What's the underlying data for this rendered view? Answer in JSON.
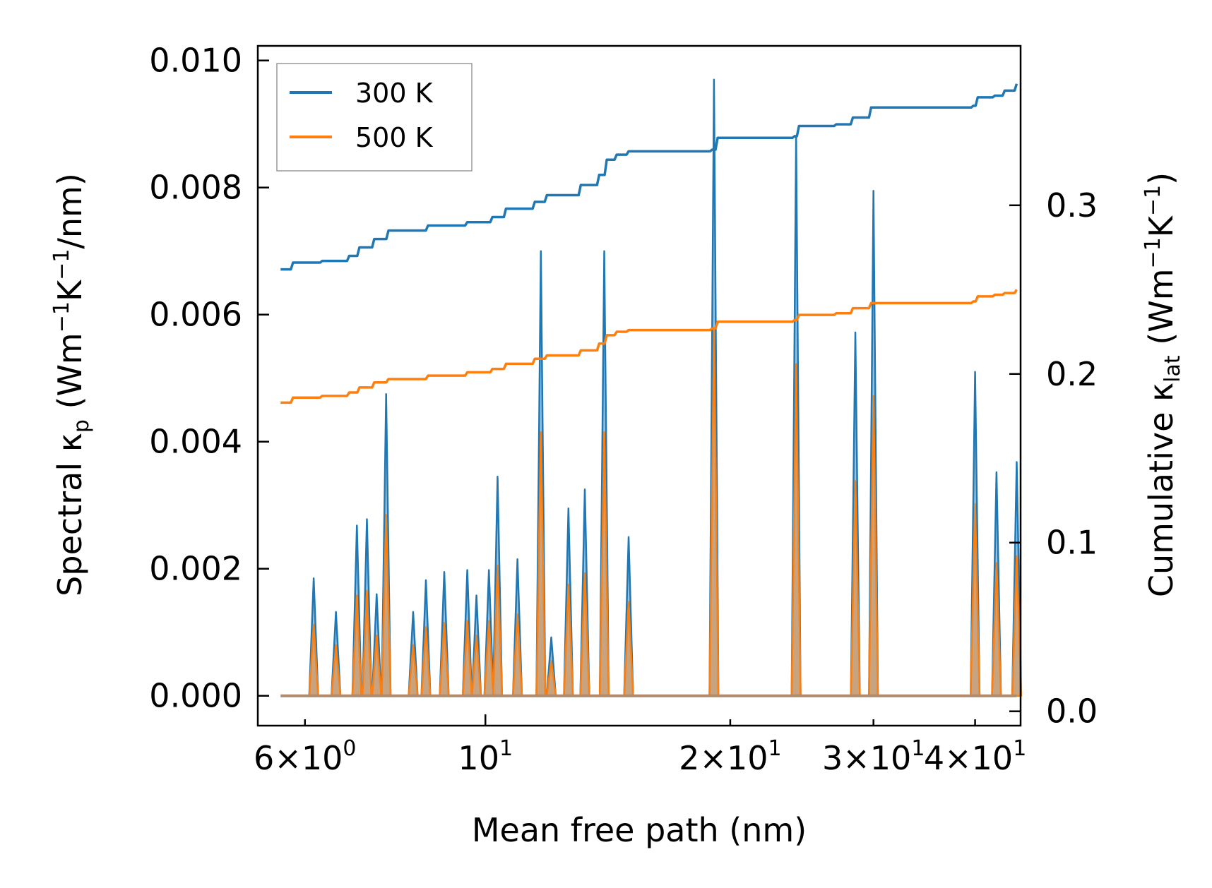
{
  "chart_data": {
    "type": "line",
    "title": "",
    "xlabel": "Mean free path (nm)",
    "ylabel_left": "Spectral κₚ (Wm⁻¹K⁻¹/nm)",
    "ylabel_left_parts": {
      "pre": "Spectral κ",
      "sub": "p",
      "post": " (Wm",
      "sup1": "−1",
      "mid": "K",
      "sup2": "−1",
      "end": "/nm)"
    },
    "ylabel_right": "Cumulative κ_lat (Wm⁻¹K⁻¹)",
    "ylabel_right_parts": {
      "pre": "Cumulative κ",
      "sub": "lat",
      "post": " (Wm",
      "sup1": "−1",
      "mid": "K",
      "sup2": "−1",
      "end": ")"
    },
    "x_scale": "log",
    "xlim": [
      5.25,
      45.5
    ],
    "ylim_left": [
      -0.00047,
      0.01023
    ],
    "ylim_right": [
      -0.0085,
      0.3945
    ],
    "x_ticks": [
      {
        "value": 6,
        "mant": "6",
        "base": "10",
        "exp": "0"
      },
      {
        "value": 10,
        "mant": "",
        "base": "10",
        "exp": "1"
      },
      {
        "value": 20,
        "mant": "2",
        "base": "10",
        "exp": "1"
      },
      {
        "value": 30,
        "mant": "3",
        "base": "10",
        "exp": "1"
      },
      {
        "value": 40,
        "mant": "4",
        "base": "10",
        "exp": "1"
      }
    ],
    "y_left_ticks": [
      "0.000",
      "0.002",
      "0.004",
      "0.006",
      "0.008",
      "0.010"
    ],
    "y_right_ticks": [
      "0.0",
      "0.1",
      "0.2",
      "0.3"
    ],
    "legend": {
      "position": "top-left",
      "entries": [
        {
          "label": "300 K",
          "color": "#1f77b4"
        },
        {
          "label": "500 K",
          "color": "#ff7f0e"
        }
      ]
    },
    "spectral_peaks": [
      {
        "x": 6.15,
        "y300": 0.00185,
        "y500": 0.00112
      },
      {
        "x": 6.55,
        "y300": 0.00132,
        "y500": 0.0008
      },
      {
        "x": 6.95,
        "y300": 0.00268,
        "y500": 0.00158
      },
      {
        "x": 7.15,
        "y300": 0.00278,
        "y500": 0.00165
      },
      {
        "x": 7.35,
        "y300": 0.0016,
        "y500": 0.00095
      },
      {
        "x": 7.55,
        "y300": 0.00475,
        "y500": 0.00285
      },
      {
        "x": 8.15,
        "y300": 0.00132,
        "y500": 0.0008
      },
      {
        "x": 8.45,
        "y300": 0.00182,
        "y500": 0.00108
      },
      {
        "x": 8.9,
        "y300": 0.00195,
        "y500": 0.00115
      },
      {
        "x": 9.5,
        "y300": 0.00198,
        "y500": 0.00118
      },
      {
        "x": 9.75,
        "y300": 0.00158,
        "y500": 0.00095
      },
      {
        "x": 10.1,
        "y300": 0.00198,
        "y500": 0.00118
      },
      {
        "x": 10.35,
        "y300": 0.00345,
        "y500": 0.00205
      },
      {
        "x": 10.95,
        "y300": 0.00215,
        "y500": 0.00128
      },
      {
        "x": 11.7,
        "y300": 0.007,
        "y500": 0.00415
      },
      {
        "x": 12.05,
        "y300": 0.00092,
        "y500": 0.00055
      },
      {
        "x": 12.65,
        "y300": 0.00295,
        "y500": 0.00175
      },
      {
        "x": 13.25,
        "y300": 0.00325,
        "y500": 0.00193
      },
      {
        "x": 14.0,
        "y300": 0.007,
        "y500": 0.00415
      },
      {
        "x": 15.0,
        "y300": 0.0025,
        "y500": 0.00148
      },
      {
        "x": 19.1,
        "y300": 0.0097,
        "y500": 0.00575
      },
      {
        "x": 24.1,
        "y300": 0.0088,
        "y500": 0.00522
      },
      {
        "x": 28.5,
        "y300": 0.00572,
        "y500": 0.00338
      },
      {
        "x": 30.0,
        "y300": 0.00795,
        "y500": 0.00472
      },
      {
        "x": 40.0,
        "y300": 0.0051,
        "y500": 0.00302
      },
      {
        "x": 42.5,
        "y300": 0.00352,
        "y500": 0.00209
      },
      {
        "x": 45.0,
        "y300": 0.00368,
        "y500": 0.0022
      }
    ],
    "cumulative_300K": [
      [
        5.6,
        0.262
      ],
      [
        5.8,
        0.266
      ],
      [
        6.3,
        0.267
      ],
      [
        6.8,
        0.27
      ],
      [
        7.0,
        0.275
      ],
      [
        7.3,
        0.28
      ],
      [
        7.6,
        0.285
      ],
      [
        8.5,
        0.288
      ],
      [
        9.5,
        0.29
      ],
      [
        10.2,
        0.293
      ],
      [
        10.6,
        0.298
      ],
      [
        11.5,
        0.302
      ],
      [
        11.9,
        0.306
      ],
      [
        13.1,
        0.312
      ],
      [
        13.8,
        0.318
      ],
      [
        14.1,
        0.327
      ],
      [
        14.5,
        0.33
      ],
      [
        15.0,
        0.332
      ],
      [
        19.0,
        0.333
      ],
      [
        19.3,
        0.34
      ],
      [
        24.0,
        0.341
      ],
      [
        24.3,
        0.347
      ],
      [
        27.0,
        0.348
      ],
      [
        28.3,
        0.352
      ],
      [
        29.8,
        0.358
      ],
      [
        39.8,
        0.359
      ],
      [
        40.3,
        0.364
      ],
      [
        42.3,
        0.365
      ],
      [
        43.5,
        0.368
      ],
      [
        45.0,
        0.372
      ]
    ],
    "cumulative_500K": [
      [
        5.6,
        0.183
      ],
      [
        5.8,
        0.186
      ],
      [
        6.3,
        0.187
      ],
      [
        6.8,
        0.189
      ],
      [
        7.0,
        0.192
      ],
      [
        7.3,
        0.195
      ],
      [
        7.6,
        0.197
      ],
      [
        8.5,
        0.199
      ],
      [
        9.5,
        0.201
      ],
      [
        10.2,
        0.203
      ],
      [
        10.6,
        0.206
      ],
      [
        11.5,
        0.209
      ],
      [
        11.9,
        0.211
      ],
      [
        13.1,
        0.214
      ],
      [
        13.8,
        0.218
      ],
      [
        14.1,
        0.223
      ],
      [
        14.5,
        0.225
      ],
      [
        15.0,
        0.226
      ],
      [
        19.0,
        0.227
      ],
      [
        19.3,
        0.231
      ],
      [
        24.0,
        0.232
      ],
      [
        24.3,
        0.235
      ],
      [
        27.0,
        0.236
      ],
      [
        28.3,
        0.239
      ],
      [
        29.8,
        0.242
      ],
      [
        39.8,
        0.243
      ],
      [
        40.3,
        0.246
      ],
      [
        42.3,
        0.247
      ],
      [
        43.5,
        0.248
      ],
      [
        45.0,
        0.25
      ]
    ]
  }
}
